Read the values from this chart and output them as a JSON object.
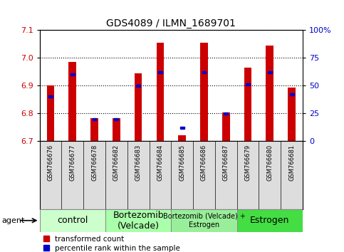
{
  "title": "GDS4089 / ILMN_1689701",
  "samples": [
    "GSM766676",
    "GSM766677",
    "GSM766678",
    "GSM766682",
    "GSM766683",
    "GSM766684",
    "GSM766685",
    "GSM766686",
    "GSM766687",
    "GSM766679",
    "GSM766680",
    "GSM766681"
  ],
  "red_values": [
    6.9,
    6.985,
    6.783,
    6.783,
    6.945,
    7.055,
    6.722,
    7.055,
    6.803,
    6.965,
    7.045,
    6.893
  ],
  "blue_values": [
    40,
    60,
    20,
    20,
    50,
    62,
    12,
    62,
    25,
    51,
    62,
    42
  ],
  "y_min": 6.7,
  "y_max": 7.1,
  "y_ticks": [
    6.7,
    6.8,
    6.9,
    7.0,
    7.1
  ],
  "y2_ticks": [
    0,
    25,
    50,
    75,
    100
  ],
  "groups": [
    {
      "label": "control",
      "start": 0,
      "end": 3,
      "color": "#ccffcc",
      "fontsize": 9
    },
    {
      "label": "Bortezomib\n(Velcade)",
      "start": 3,
      "end": 6,
      "color": "#aaffaa",
      "fontsize": 9
    },
    {
      "label": "Bortezomib (Velcade) +\nEstrogen",
      "start": 6,
      "end": 9,
      "color": "#99ee99",
      "fontsize": 7
    },
    {
      "label": "Estrogen",
      "start": 9,
      "end": 12,
      "color": "#44dd44",
      "fontsize": 9
    }
  ],
  "bar_width": 0.35,
  "red_color": "#cc0000",
  "blue_color": "#0000cc",
  "base": 6.7,
  "tick_label_fontsize": 8,
  "sample_fontsize": 6,
  "title_fontsize": 10
}
